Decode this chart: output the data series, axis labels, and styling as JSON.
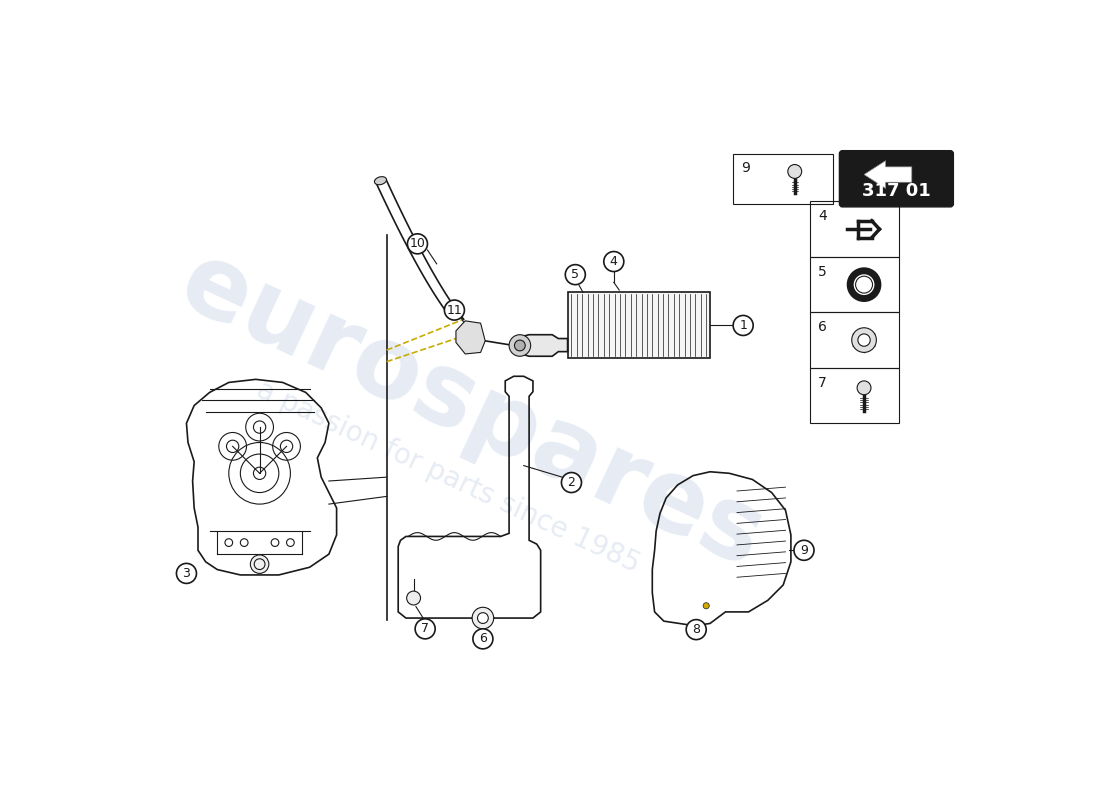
{
  "bg_color": "#ffffff",
  "line_color": "#1a1a1a",
  "watermark_text1": "eurospares",
  "watermark_text2": "a passion for parts since 1985",
  "watermark_color": "#c8d4e8",
  "diagram_code": "317 01",
  "arrow_color": "#c8aa00",
  "small_box_items": [
    {
      "num": 7
    },
    {
      "num": 6
    },
    {
      "num": 5
    },
    {
      "num": 4
    }
  ]
}
